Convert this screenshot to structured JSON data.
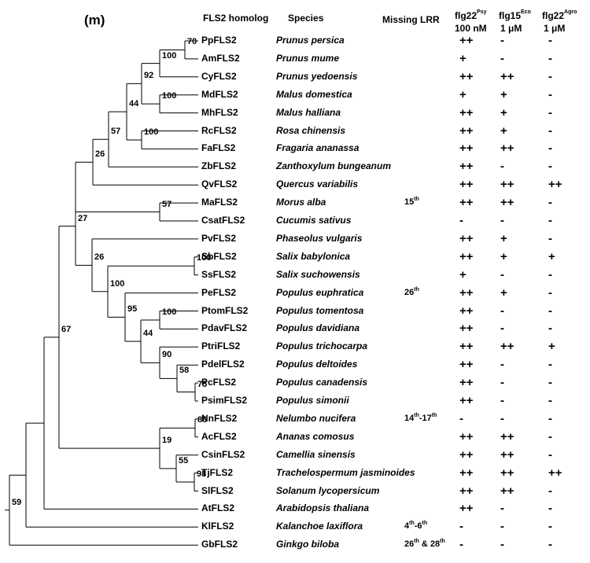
{
  "panel_label": "(m)",
  "headers": {
    "homolog": "FLS2 homolog",
    "species": "Species",
    "missing_lrr": "Missing LRR",
    "flg22psy_main": "flg22",
    "flg22psy_sup": "Psy",
    "flg22psy_conc": "100 nM",
    "flg15eco_main": "flg15",
    "flg15eco_sup": "Eco",
    "flg15eco_conc": "1 μM",
    "flg22agro_main": "flg22",
    "flg22agro_sup": "Agro",
    "flg22agro_conc": "1 μM"
  },
  "rows": [
    {
      "gene": "PpFLS2",
      "species": "Prunus persica",
      "missing": "",
      "flg22psy": "++",
      "flg15eco": "-",
      "flg22agro": "-"
    },
    {
      "gene": "AmFLS2",
      "species": "Prunus mume",
      "missing": "",
      "flg22psy": "+",
      "flg15eco": "-",
      "flg22agro": "-"
    },
    {
      "gene": "CyFLS2",
      "species": "Prunus yedoensis",
      "missing": "",
      "flg22psy": "++",
      "flg15eco": "++",
      "flg22agro": "-"
    },
    {
      "gene": "MdFLS2",
      "species": "Malus domestica",
      "missing": "",
      "flg22psy": "+",
      "flg15eco": "+",
      "flg22agro": "-"
    },
    {
      "gene": "MhFLS2",
      "species": "Malus halliana",
      "missing": "",
      "flg22psy": "++",
      "flg15eco": "+",
      "flg22agro": "-"
    },
    {
      "gene": "RcFLS2",
      "species": "Rosa chinensis",
      "missing": "",
      "flg22psy": "++",
      "flg15eco": "+",
      "flg22agro": "-"
    },
    {
      "gene": "FaFLS2",
      "species": "Fragaria ananassa",
      "missing": "",
      "flg22psy": "++",
      "flg15eco": "++",
      "flg22agro": "-"
    },
    {
      "gene": "ZbFLS2",
      "species": "Zanthoxylum bungeanum",
      "missing": "",
      "flg22psy": "++",
      "flg15eco": "-",
      "flg22agro": "-"
    },
    {
      "gene": "QvFLS2",
      "species": "Quercus variabilis",
      "missing": "",
      "flg22psy": "++",
      "flg15eco": "++",
      "flg22agro": "++"
    },
    {
      "gene": "MaFLS2",
      "species": "Morus alba",
      "missing": "15",
      "missing_sup": "th",
      "flg22psy": "++",
      "flg15eco": "++",
      "flg22agro": "-"
    },
    {
      "gene": "CsatFLS2",
      "species": "Cucumis sativus",
      "missing": "",
      "flg22psy": "-",
      "flg15eco": "-",
      "flg22agro": "-"
    },
    {
      "gene": "PvFLS2",
      "species": "Phaseolus vulgaris",
      "missing": "",
      "flg22psy": "++",
      "flg15eco": "+",
      "flg22agro": "-"
    },
    {
      "gene": "SbFLS2",
      "species": "Salix babylonica",
      "missing": "",
      "flg22psy": "++",
      "flg15eco": "+",
      "flg22agro": "+"
    },
    {
      "gene": "SsFLS2",
      "species": "Salix suchowensis",
      "missing": "",
      "flg22psy": "+",
      "flg15eco": "-",
      "flg22agro": "-"
    },
    {
      "gene": "PeFLS2",
      "species": "Populus euphratica",
      "missing": "26",
      "missing_sup": "th",
      "flg22psy": "++",
      "flg15eco": "+",
      "flg22agro": "-"
    },
    {
      "gene": "PtomFLS2",
      "species": "Populus tomentosa",
      "missing": "",
      "flg22psy": "++",
      "flg15eco": "-",
      "flg22agro": "-"
    },
    {
      "gene": "PdavFLS2",
      "species": "Populus davidiana",
      "missing": "",
      "flg22psy": "++",
      "flg15eco": "-",
      "flg22agro": "-"
    },
    {
      "gene": "PtriFLS2",
      "species": "Populus trichocarpa",
      "missing": "",
      "flg22psy": "++",
      "flg15eco": "++",
      "flg22agro": "+"
    },
    {
      "gene": "PdelFLS2",
      "species": "Populus deltoides",
      "missing": "",
      "flg22psy": "++",
      "flg15eco": "-",
      "flg22agro": "-"
    },
    {
      "gene": "PcFLS2",
      "species": "Populus canadensis",
      "missing": "",
      "flg22psy": "++",
      "flg15eco": "-",
      "flg22agro": "-"
    },
    {
      "gene": "PsimFLS2",
      "species": "Populus simonii",
      "missing": "",
      "flg22psy": "++",
      "flg15eco": "-",
      "flg22agro": "-"
    },
    {
      "gene": "NnFLS2",
      "species": "Nelumbo nucifera",
      "missing": "14",
      "missing_sup": "th",
      "missing_mid": "-17",
      "missing_sup2": "th",
      "flg22psy": "-",
      "flg15eco": "-",
      "flg22agro": "-"
    },
    {
      "gene": "AcFLS2",
      "species": "Ananas comosus",
      "missing": "",
      "flg22psy": "++",
      "flg15eco": "++",
      "flg22agro": "-"
    },
    {
      "gene": "CsinFLS2",
      "species": "Camellia sinensis",
      "missing": "",
      "flg22psy": "++",
      "flg15eco": "++",
      "flg22agro": "-"
    },
    {
      "gene": "TjFLS2",
      "species": "Trachelospermum jasminoides",
      "missing": "",
      "flg22psy": "++",
      "flg15eco": "++",
      "flg22agro": "++"
    },
    {
      "gene": "SlFLS2",
      "species": "Solanum lycopersicum",
      "missing": "",
      "flg22psy": "++",
      "flg15eco": "++",
      "flg22agro": "-"
    },
    {
      "gene": "AtFLS2",
      "species": "Arabidopsis thaliana",
      "missing": "",
      "flg22psy": "++",
      "flg15eco": "-",
      "flg22agro": "-"
    },
    {
      "gene": "KlFLS2",
      "species": "Kalanchoe laxiflora",
      "missing": "4",
      "missing_sup": "th",
      "missing_mid": "-6",
      "missing_sup2": "th",
      "flg22psy": "-",
      "flg15eco": "-",
      "flg22agro": "-"
    },
    {
      "gene": "GbFLS2",
      "species": "Ginkgo biloba",
      "missing": "26",
      "missing_sup": "th",
      "missing_mid": " & 28",
      "missing_sup2": "th",
      "flg22psy": "-",
      "flg15eco": "-",
      "flg22agro": "-"
    }
  ],
  "bootstrap": [
    "70",
    "100",
    "92",
    "100",
    "100",
    "44",
    "57",
    "26",
    "57",
    "27",
    "26",
    "100",
    "100",
    "95",
    "100",
    "44",
    "90",
    "58",
    "75",
    "67",
    "86",
    "19",
    "55",
    "98",
    "59"
  ]
}
